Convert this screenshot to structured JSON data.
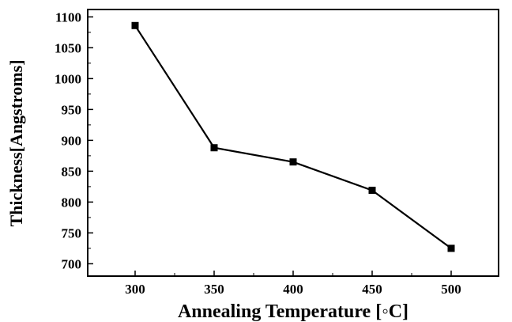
{
  "chart_data": {
    "type": "line",
    "xlabel": "Annealing Temperature [◦C]",
    "ylabel": "Thickness[Angstroms]",
    "x": [
      300,
      350,
      400,
      450,
      500
    ],
    "series": [
      {
        "values": [
          1086,
          888,
          865,
          819,
          725
        ]
      }
    ],
    "x_ticks": [
      "300",
      "350",
      "400",
      "450",
      "500"
    ],
    "y_ticks": [
      "700",
      "750",
      "800",
      "850",
      "900",
      "950",
      "1000",
      "1050",
      "1100"
    ],
    "xlim": [
      270,
      530
    ],
    "ylim": [
      680,
      1112
    ],
    "grid": false,
    "marker": "square",
    "line_color": "#000000"
  }
}
